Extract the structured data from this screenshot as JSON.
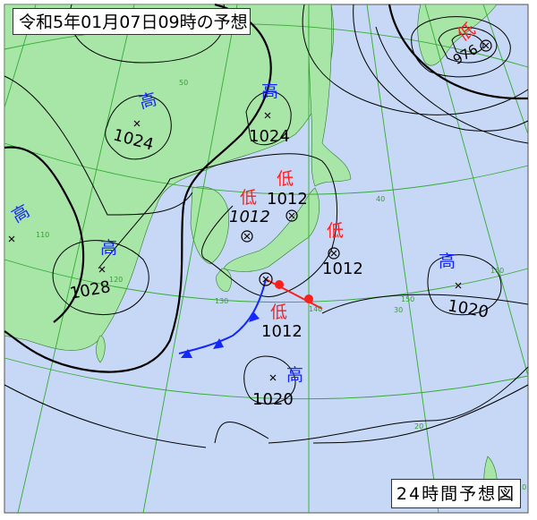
{
  "title": "令和5年01月07日09時の予想",
  "chart_kind": "24時間予想図",
  "colors": {
    "land": "#a8e6a8",
    "sea": "#c6d8f5",
    "high": "#1428ff",
    "low": "#ff1e1e",
    "graticule": "#33aa33",
    "isobar": "#000000"
  },
  "systems": [
    {
      "type": "高",
      "pressure": "1024"
    },
    {
      "type": "高",
      "pressure": "1024"
    },
    {
      "type": "高",
      "pressure": ""
    },
    {
      "type": "高",
      "pressure": "1028"
    },
    {
      "type": "低",
      "pressure": "1012"
    },
    {
      "type": "低",
      "pressure": "1012"
    },
    {
      "type": "低",
      "pressure": "1012"
    },
    {
      "type": "低",
      "pressure": "1012"
    },
    {
      "type": "低",
      "pressure": "976"
    },
    {
      "type": "高",
      "pressure": "1020"
    },
    {
      "type": "高",
      "pressure": "1020"
    }
  ],
  "graticule_labels": [
    "50",
    "40",
    "30",
    "20",
    "110",
    "120",
    "130",
    "140",
    "150",
    "160",
    "10"
  ]
}
